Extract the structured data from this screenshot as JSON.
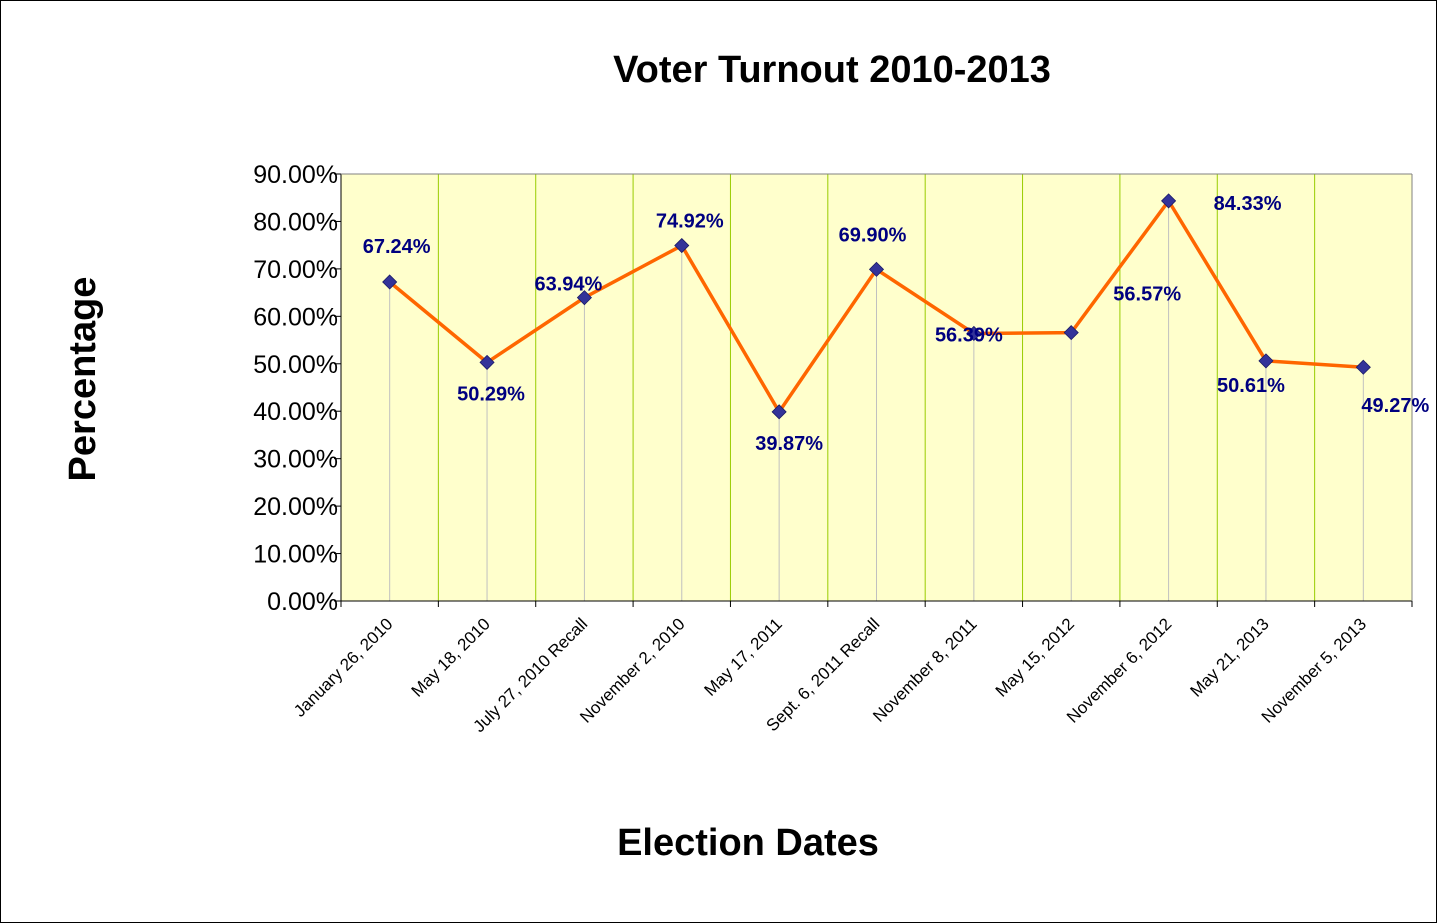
{
  "chart_data": {
    "type": "line",
    "title": "Voter Turnout 2010-2013",
    "xlabel": "Election Dates",
    "ylabel": "Percentage",
    "ylim": [
      0,
      90
    ],
    "ytick_step": 10,
    "ytick_labels": [
      "0.00%",
      "10.00%",
      "20.00%",
      "30.00%",
      "40.00%",
      "50.00%",
      "60.00%",
      "70.00%",
      "80.00%",
      "90.00%"
    ],
    "categories": [
      "January 26, 2010",
      "May 18, 2010",
      "July 27, 2010 Recall",
      "November 2, 2010",
      "May 17, 2011",
      "Sept. 6, 2011 Recall",
      "November 8, 2011",
      "May 15, 2012",
      "November 6, 2012",
      "May 21, 2013",
      "November 5, 2013"
    ],
    "series": [
      {
        "values": [
          67.24,
          50.29,
          63.94,
          74.92,
          39.87,
          69.9,
          56.39,
          56.57,
          84.33,
          50.61,
          49.27
        ],
        "data_labels": [
          "67.24%",
          "50.29%",
          "63.94%",
          "74.92%",
          "39.87%",
          "69.90%",
          "56.39%",
          "56.57%",
          "84.33%",
          "50.61%",
          "49.27%"
        ],
        "line_color": "#ff6600",
        "marker_color": "#333399",
        "marker": "diamond"
      }
    ],
    "grid": true,
    "legend": "none",
    "colors": {
      "plot_background": "#ffffcc",
      "grid_line": "#99cc00",
      "label_color": "#000080",
      "drop_line": "#c0c0c0"
    }
  }
}
